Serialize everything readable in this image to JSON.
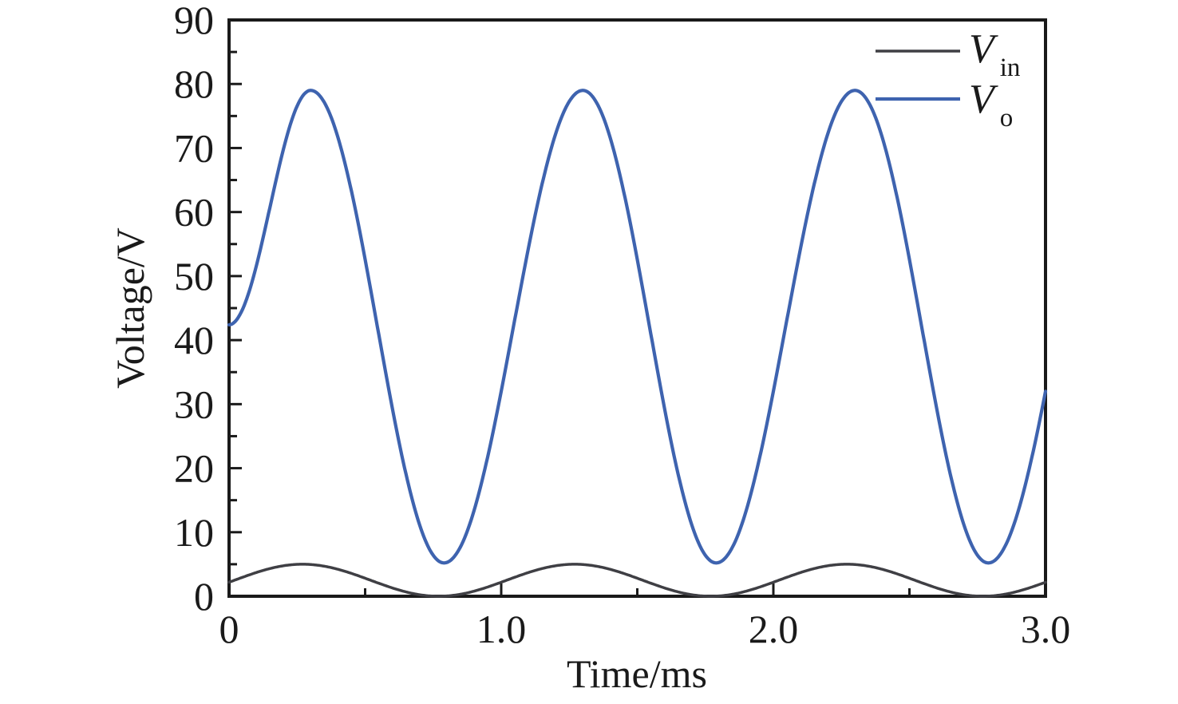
{
  "figure": {
    "background": "#ffffff",
    "axis_color": "#1a1a1a",
    "text_color": "#1a1a1a"
  },
  "chart_data": {
    "type": "line",
    "title": "",
    "xlabel": "Time/ms",
    "ylabel": "Voltage/V",
    "xlim": [
      0,
      3.0
    ],
    "ylim": [
      0,
      90
    ],
    "grid": false,
    "legend_position": "top-right-inside",
    "x_major_ticks": [
      0,
      1.0,
      2.0,
      3.0
    ],
    "x_major_tick_labels": [
      "0",
      "1.0",
      "2.0",
      "3.0"
    ],
    "x_minor_ticks": [
      0.5,
      1.5,
      2.5
    ],
    "y_major_ticks": [
      0,
      10,
      20,
      30,
      40,
      50,
      60,
      70,
      80,
      90
    ],
    "y_major_tick_labels": [
      "0",
      "10",
      "20",
      "30",
      "40",
      "50",
      "60",
      "70",
      "80",
      "90"
    ],
    "y_minor_ticks": [
      5,
      15,
      25,
      35,
      45,
      55,
      65,
      75,
      85
    ],
    "sample_x_start": 0,
    "sample_x_step": 0.1,
    "series": [
      {
        "name": "Vin",
        "legend_base": "V",
        "legend_sub": "in",
        "color": "#3f3f44",
        "line_width": 3.5,
        "description": "Input voltage sinusoid, 0 to 5 V swing, period 1 ms, peaks near t = 0.27/1.27/2.27 ms, minima 0 V near t = 0.77/1.77/2.77 ms",
        "extrema_points": [
          [
            -0.23,
            0
          ],
          [
            0.27,
            5.0
          ],
          [
            0.77,
            0
          ],
          [
            1.27,
            5.0
          ],
          [
            1.77,
            0
          ],
          [
            2.27,
            5.0
          ],
          [
            2.77,
            0
          ],
          [
            3.27,
            5.0
          ]
        ],
        "values": [
          2.2,
          3.7,
          4.8,
          5.0,
          4.2,
          2.8,
          1.3,
          0.2,
          0.0,
          0.8,
          2.2,
          3.7,
          4.8,
          5.0,
          4.2,
          2.8,
          1.3,
          0.2,
          0.0,
          0.8,
          2.2,
          3.7,
          4.8,
          5.0,
          4.2,
          2.8,
          1.3,
          0.2,
          0.0,
          0.8,
          2.2
        ]
      },
      {
        "name": "Vo",
        "legend_base": "V",
        "legend_sub": "o",
        "color": "#3e63af",
        "line_width": 4.2,
        "description": "Output voltage, starts at 42.4 V, swings between ~5 V and ~79 V, period 1 ms, peaks at t = 0.3/1.3/2.3 ms, minima at t = 0.79/1.79/2.79 ms",
        "extrema_points": [
          [
            0,
            42.4
          ],
          [
            0.3,
            79.0
          ],
          [
            0.79,
            5.2
          ],
          [
            1.3,
            79.0
          ],
          [
            1.79,
            5.2
          ],
          [
            2.3,
            79.0
          ],
          [
            2.79,
            5.2
          ],
          [
            3.3,
            79.0
          ]
        ],
        "values": [
          42.4,
          51.6,
          69.9,
          79.0,
          71.7,
          52.6,
          29.4,
          11.2,
          5.3,
          13.4,
          31.9,
          54.3,
          72.1,
          79.0,
          71.7,
          52.6,
          29.4,
          11.2,
          5.3,
          13.4,
          31.9,
          54.3,
          72.1,
          79.0,
          71.7,
          52.6,
          29.4,
          11.2,
          5.3,
          13.4,
          31.9
        ]
      }
    ]
  }
}
